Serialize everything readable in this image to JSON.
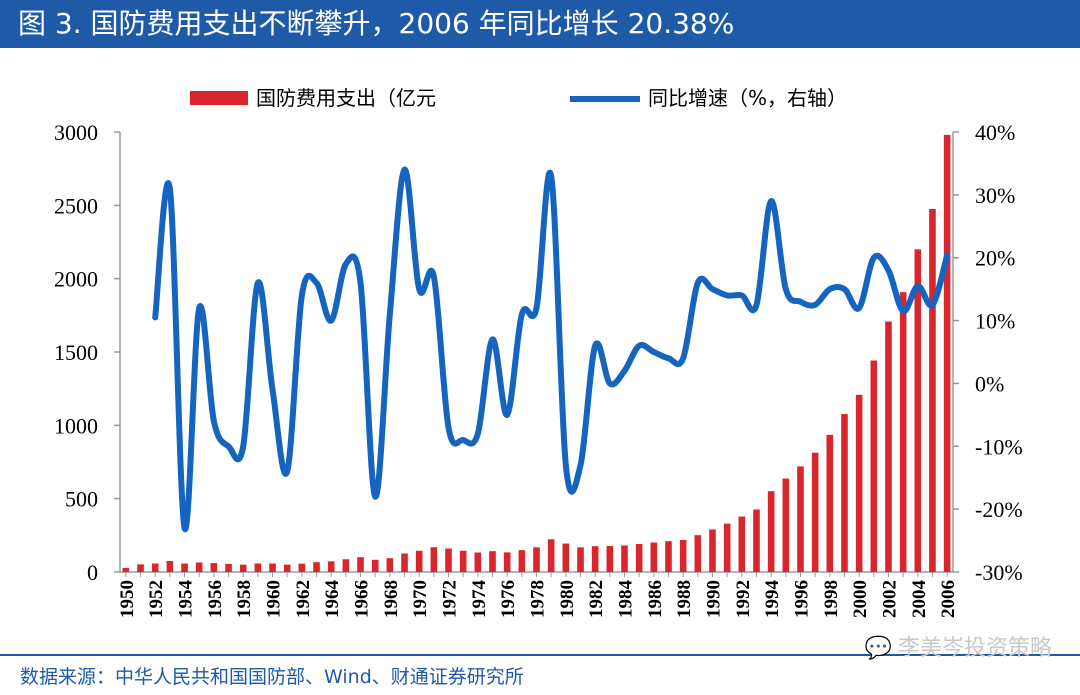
{
  "header": {
    "title": "图 3. 国防费用支出不断攀升，2006 年同比增长 20.38%"
  },
  "footer": {
    "source": "数据来源：中华人民共和国国防部、Wind、财通证券研究所"
  },
  "watermark": {
    "text": "李美岑投资策略",
    "icon": "wechat-icon"
  },
  "colors": {
    "title_bg": "#1f5aa8",
    "bar": "#d9262d",
    "line": "#1565c0",
    "axis": "#9a9a9a"
  },
  "chart_data": {
    "type": "bar+line",
    "title": "国防费用支出不断攀升，2006 年同比增长 20.38%",
    "legend_position": "top",
    "categories": [
      1950,
      1951,
      1952,
      1953,
      1954,
      1955,
      1956,
      1957,
      1958,
      1959,
      1960,
      1961,
      1962,
      1963,
      1964,
      1965,
      1966,
      1967,
      1968,
      1969,
      1970,
      1971,
      1972,
      1973,
      1974,
      1975,
      1976,
      1977,
      1978,
      1979,
      1980,
      1981,
      1982,
      1983,
      1984,
      1985,
      1986,
      1987,
      1988,
      1989,
      1990,
      1991,
      1992,
      1993,
      1994,
      1995,
      1996,
      1997,
      1998,
      1999,
      2000,
      2001,
      2002,
      2003,
      2004,
      2005,
      2006
    ],
    "x_tick_labels": [
      "1950",
      "1952",
      "1954",
      "1956",
      "1958",
      "1960",
      "1962",
      "1964",
      "1966",
      "1968",
      "1970",
      "1972",
      "1974",
      "1976",
      "1978",
      "1980",
      "1982",
      "1984",
      "1986",
      "1988",
      "1990",
      "1992",
      "1994",
      "1996",
      "1998",
      "2000",
      "2002",
      "2004",
      "2006"
    ],
    "series": [
      {
        "name": "国防费用支出（亿元",
        "type": "bar",
        "axis": "left",
        "values": [
          28,
          52,
          58,
          75,
          58,
          65,
          61,
          55,
          50,
          58,
          58,
          50,
          57,
          67,
          73,
          87,
          101,
          83,
          94,
          126,
          145,
          169,
          160,
          145,
          133,
          142,
          134,
          149,
          168,
          223,
          194,
          168,
          176,
          177,
          181,
          191,
          201,
          210,
          218,
          251,
          290,
          330,
          378,
          426,
          551,
          637,
          720,
          813,
          935,
          1077,
          1208,
          1442,
          1708,
          1908,
          2200,
          2475,
          2980
        ]
      },
      {
        "name": "同比增速（%，右轴）",
        "type": "line",
        "axis": "right",
        "values": [
          null,
          null,
          10.5,
          31,
          -23,
          12,
          -6,
          -10,
          -10,
          16,
          -1,
          -14,
          14,
          16,
          10,
          19,
          16,
          -18,
          11,
          34,
          15,
          17,
          -7,
          -9,
          -8,
          7,
          -5,
          11,
          12,
          33,
          -13,
          -13,
          6,
          0,
          2,
          6,
          5,
          4,
          4,
          16,
          15,
          14,
          14,
          12.5,
          29,
          15,
          13,
          12.5,
          15,
          15,
          12,
          20,
          18,
          11.5,
          15.5,
          12.5,
          20.38
        ]
      }
    ],
    "y_left": {
      "range": [
        0,
        3000
      ],
      "ticks": [
        "0",
        "500",
        "1000",
        "1500",
        "2000",
        "2500",
        "3000"
      ]
    },
    "y_right": {
      "range": [
        -30,
        40
      ],
      "ticks": [
        "-30%",
        "-20%",
        "-10%",
        "0%",
        "10%",
        "20%",
        "30%",
        "40%"
      ]
    }
  }
}
